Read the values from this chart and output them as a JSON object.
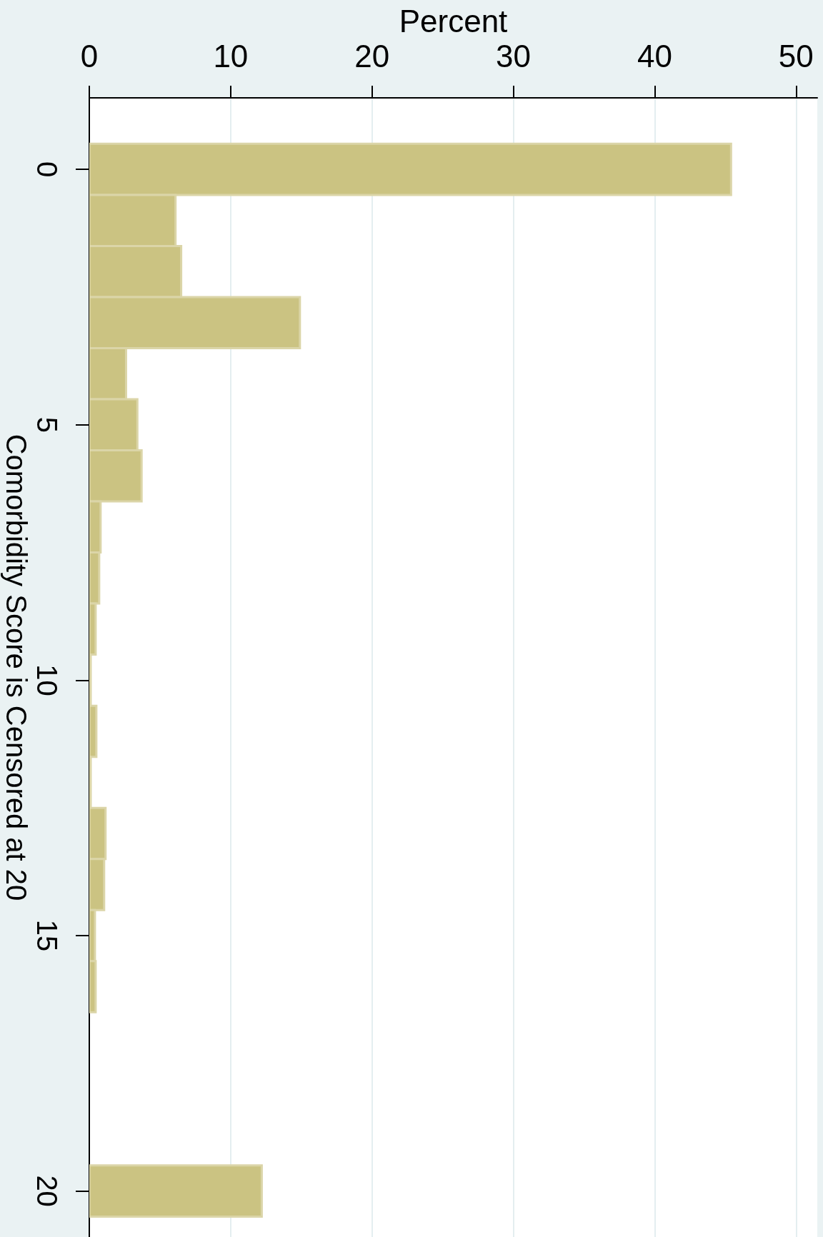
{
  "chart_data": {
    "type": "histogram",
    "orientation": "horizontal",
    "xlabel": "Percent",
    "ylabel": "Comorbidity Score is Censored at 20",
    "bins": [
      -0.5,
      0.5,
      1.5,
      2.5,
      3.5,
      4.5,
      5.5,
      6.5,
      7.5,
      8.5,
      9.5,
      10.5,
      11.5,
      12.5,
      13.5,
      14.5,
      15.5,
      16.5,
      17.5,
      18.5,
      19.5,
      20.5
    ],
    "values": [
      45.4,
      6.1,
      6.5,
      14.9,
      2.6,
      3.4,
      3.7,
      0.8,
      0.7,
      0.45,
      0.1,
      0.5,
      0.1,
      1.15,
      1.05,
      0.4,
      0.45,
      0,
      0,
      0,
      12.2
    ],
    "color": "#cbc382",
    "xlim": [
      0,
      51.5
    ],
    "xticks": [
      0,
      10,
      20,
      30,
      40,
      50
    ],
    "ylim": [
      20.9,
      -1.4
    ],
    "yticks": [
      0,
      5,
      10,
      15,
      20
    ],
    "grid": "x"
  }
}
